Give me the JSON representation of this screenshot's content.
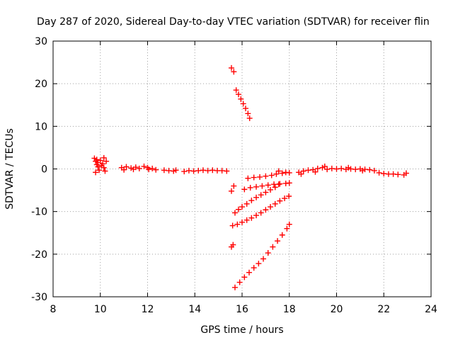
{
  "chart_data": {
    "type": "scatter",
    "title": "Day 287 of 2020, Sidereal Day-to-day VTEC variation (SDTVAR) for receiver flin",
    "xlabel": "GPS time / hours",
    "ylabel": "SDTVAR / TECUs",
    "xlim": [
      8,
      24
    ],
    "ylim": [
      -30,
      30
    ],
    "xticks": [
      8,
      10,
      12,
      14,
      16,
      18,
      20,
      22,
      24
    ],
    "yticks": [
      -30,
      -20,
      -10,
      0,
      10,
      20,
      30
    ],
    "grid": true,
    "marker": "+",
    "color": "#ff0000",
    "series": [
      {
        "points": [
          [
            9.75,
            2.5
          ],
          [
            9.8,
            1.8
          ],
          [
            9.85,
            1.0
          ],
          [
            9.9,
            0.5
          ],
          [
            9.95,
            -0.3
          ],
          [
            9.8,
            -0.8
          ],
          [
            9.9,
            1.5
          ],
          [
            10.0,
            2.0
          ],
          [
            10.1,
            1.2
          ],
          [
            10.15,
            0.3
          ],
          [
            10.2,
            -0.5
          ],
          [
            10.05,
            0.8
          ],
          [
            9.85,
            2.2
          ],
          [
            10.25,
            1.8
          ],
          [
            10.15,
            2.6
          ],
          [
            10.9,
            0.3
          ],
          [
            11.1,
            0.5
          ],
          [
            11.3,
            0.2
          ],
          [
            11.5,
            0.4
          ],
          [
            11.65,
            0.1
          ],
          [
            11.0,
            -0.2
          ],
          [
            11.4,
            -0.1
          ],
          [
            11.85,
            0.6
          ],
          [
            12.0,
            0.3
          ],
          [
            12.2,
            0.1
          ],
          [
            12.35,
            -0.2
          ],
          [
            12.05,
            -0.1
          ],
          [
            12.7,
            -0.3
          ],
          [
            12.9,
            -0.4
          ],
          [
            13.1,
            -0.5
          ],
          [
            13.2,
            -0.3
          ],
          [
            13.55,
            -0.6
          ],
          [
            13.75,
            -0.4
          ],
          [
            13.95,
            -0.5
          ],
          [
            14.15,
            -0.4
          ],
          [
            14.35,
            -0.3
          ],
          [
            14.55,
            -0.4
          ],
          [
            14.75,
            -0.3
          ],
          [
            14.95,
            -0.4
          ],
          [
            15.15,
            -0.4
          ],
          [
            15.35,
            -0.5
          ],
          [
            15.55,
            23.7
          ],
          [
            15.65,
            22.8
          ],
          [
            15.75,
            18.5
          ],
          [
            15.85,
            17.5
          ],
          [
            15.95,
            16.4
          ],
          [
            16.05,
            15.3
          ],
          [
            16.15,
            14.2
          ],
          [
            16.25,
            13.0
          ],
          [
            16.32,
            11.9
          ],
          [
            15.55,
            -5.2
          ],
          [
            15.65,
            -4.0
          ],
          [
            15.55,
            -18.3
          ],
          [
            15.62,
            -17.8
          ],
          [
            15.7,
            -10.3
          ],
          [
            15.85,
            -9.5
          ],
          [
            16.0,
            -8.9
          ],
          [
            16.2,
            -8.2
          ],
          [
            16.4,
            -7.4
          ],
          [
            16.6,
            -6.7
          ],
          [
            16.8,
            -6.1
          ],
          [
            17.0,
            -5.5
          ],
          [
            17.2,
            -4.9
          ],
          [
            17.4,
            -4.3
          ],
          [
            17.55,
            -3.6
          ],
          [
            15.6,
            -13.3
          ],
          [
            15.8,
            -13.0
          ],
          [
            16.0,
            -12.5
          ],
          [
            16.2,
            -12.0
          ],
          [
            16.4,
            -11.5
          ],
          [
            16.6,
            -10.9
          ],
          [
            16.8,
            -10.3
          ],
          [
            17.0,
            -9.6
          ],
          [
            17.2,
            -8.9
          ],
          [
            17.4,
            -8.2
          ],
          [
            17.6,
            -7.5
          ],
          [
            17.8,
            -6.9
          ],
          [
            17.98,
            -6.4
          ],
          [
            16.1,
            -4.8
          ],
          [
            16.35,
            -4.4
          ],
          [
            16.6,
            -4.2
          ],
          [
            16.85,
            -4.0
          ],
          [
            17.1,
            -3.8
          ],
          [
            17.35,
            -3.6
          ],
          [
            17.6,
            -3.5
          ],
          [
            17.85,
            -3.4
          ],
          [
            18.0,
            -3.3
          ],
          [
            16.25,
            -2.2
          ],
          [
            16.5,
            -2.0
          ],
          [
            16.75,
            -1.9
          ],
          [
            17.0,
            -1.7
          ],
          [
            17.25,
            -1.5
          ],
          [
            17.45,
            -1.2
          ],
          [
            17.55,
            -0.5
          ],
          [
            17.7,
            -1.0
          ],
          [
            17.85,
            -0.8
          ],
          [
            18.0,
            -0.9
          ],
          [
            15.7,
            -27.8
          ],
          [
            15.9,
            -26.6
          ],
          [
            16.1,
            -25.4
          ],
          [
            16.3,
            -24.3
          ],
          [
            16.5,
            -23.2
          ],
          [
            16.7,
            -22.2
          ],
          [
            16.9,
            -21.1
          ],
          [
            17.1,
            -19.7
          ],
          [
            17.3,
            -18.3
          ],
          [
            17.5,
            -16.9
          ],
          [
            17.7,
            -15.5
          ],
          [
            17.9,
            -14.0
          ],
          [
            18.0,
            -13.0
          ],
          [
            18.4,
            -0.8
          ],
          [
            18.6,
            -0.5
          ],
          [
            18.8,
            -0.3
          ],
          [
            19.0,
            -0.2
          ],
          [
            19.2,
            0.1
          ],
          [
            19.4,
            0.3
          ],
          [
            19.6,
            -0.1
          ],
          [
            19.8,
            0.1
          ],
          [
            20.0,
            0.0
          ],
          [
            20.2,
            0.1
          ],
          [
            20.4,
            -0.1
          ],
          [
            20.6,
            0.0
          ],
          [
            20.8,
            -0.1
          ],
          [
            21.0,
            0.0
          ],
          [
            21.2,
            -0.1
          ],
          [
            21.4,
            -0.2
          ],
          [
            21.6,
            -0.4
          ],
          [
            18.5,
            -1.2
          ],
          [
            19.1,
            -0.7
          ],
          [
            19.5,
            0.6
          ],
          [
            20.5,
            0.3
          ],
          [
            21.1,
            -0.4
          ],
          [
            21.8,
            -0.9
          ],
          [
            22.0,
            -1.1
          ],
          [
            22.2,
            -1.2
          ],
          [
            22.4,
            -1.2
          ],
          [
            22.6,
            -1.3
          ],
          [
            22.85,
            -1.4
          ],
          [
            22.95,
            -1.0
          ]
        ]
      }
    ]
  }
}
